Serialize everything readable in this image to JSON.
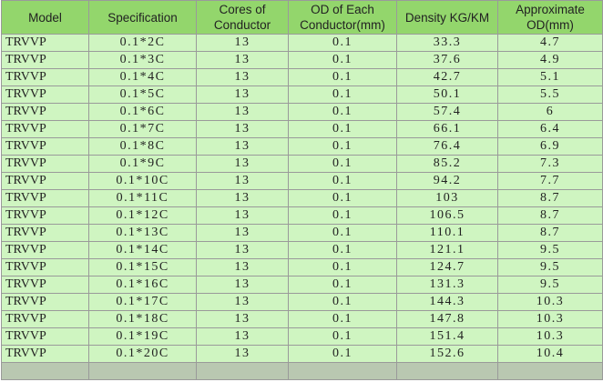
{
  "table": {
    "header": [
      "Model",
      "Specification",
      "Cores of Conductor",
      "OD of Each Conductor(mm)",
      "Density KG/KM",
      "Approximate OD(mm)"
    ],
    "rows": [
      [
        "TRVVP",
        "0.1*2C",
        "13",
        "0.1",
        "33.3",
        "4.7"
      ],
      [
        "TRVVP",
        "0.1*3C",
        "13",
        "0.1",
        "37.6",
        "4.9"
      ],
      [
        "TRVVP",
        "0.1*4C",
        "13",
        "0.1",
        "42.7",
        "5.1"
      ],
      [
        "TRVVP",
        "0.1*5C",
        "13",
        "0.1",
        "50.1",
        "5.5"
      ],
      [
        "TRVVP",
        "0.1*6C",
        "13",
        "0.1",
        "57.4",
        "6"
      ],
      [
        "TRVVP",
        "0.1*7C",
        "13",
        "0.1",
        "66.1",
        "6.4"
      ],
      [
        "TRVVP",
        "0.1*8C",
        "13",
        "0.1",
        "76.4",
        "6.9"
      ],
      [
        "TRVVP",
        "0.1*9C",
        "13",
        "0.1",
        "85.2",
        "7.3"
      ],
      [
        "TRVVP",
        "0.1*10C",
        "13",
        "0.1",
        "94.2",
        "7.7"
      ],
      [
        "TRVVP",
        "0.1*11C",
        "13",
        "0.1",
        "103",
        "8.7"
      ],
      [
        "TRVVP",
        "0.1*12C",
        "13",
        "0.1",
        "106.5",
        "8.7"
      ],
      [
        "TRVVP",
        "0.1*13C",
        "13",
        "0.1",
        "110.1",
        "8.7"
      ],
      [
        "TRVVP",
        "0.1*14C",
        "13",
        "0.1",
        "121.1",
        "9.5"
      ],
      [
        "TRVVP",
        "0.1*15C",
        "13",
        "0.1",
        "124.7",
        "9.5"
      ],
      [
        "TRVVP",
        "0.1*16C",
        "13",
        "0.1",
        "131.3",
        "9.5"
      ],
      [
        "TRVVP",
        "0.1*17C",
        "13",
        "0.1",
        "144.3",
        "10.3"
      ],
      [
        "TRVVP",
        "0.1*18C",
        "13",
        "0.1",
        "147.8",
        "10.3"
      ],
      [
        "TRVVP",
        "0.1*19C",
        "13",
        "0.1",
        "151.4",
        "10.3"
      ],
      [
        "TRVVP",
        "0.1*20C",
        "13",
        "0.1",
        "152.6",
        "10.4"
      ]
    ]
  }
}
